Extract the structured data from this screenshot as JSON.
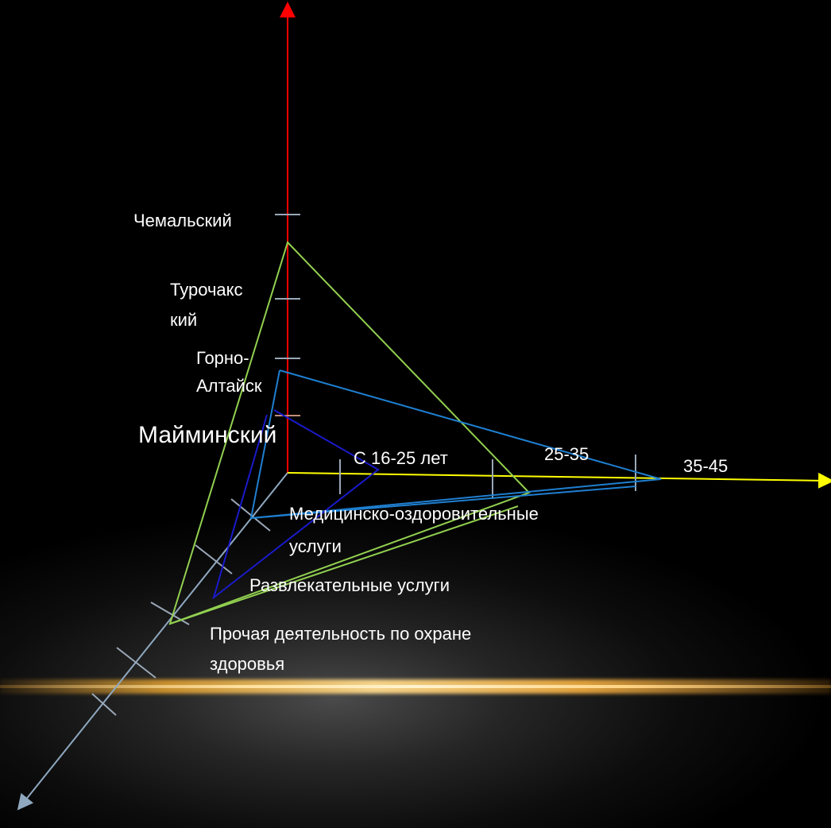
{
  "vertical_axis": {
    "color": "#ff0000",
    "ticks": [
      "Чемальский",
      "Турочакский_split",
      "Горно-Алтайск",
      "Майминский"
    ]
  },
  "labels": {
    "chemalsky": "Чемальский",
    "turochaksky_1": "Турочак",
    "turochaksky_2": "с",
    "turochaksky_3": "кий",
    "gorno_1": "Горно-",
    "gorno_2": "Алтайск",
    "mayminsky": "Майминский",
    "age_16_25": "С 16-25 лет",
    "age_25_35": "25-35",
    "age_35_45": "35-45",
    "medical_1": "Медицинско-оздоровительные",
    "medical_2": "услуги",
    "entertainment": "Развлекательные услуги",
    "other_1": "Прочая деятельность по охране",
    "other_2": "здоровья"
  },
  "colors": {
    "vertical_axis": "#ff0000",
    "horizontal_axis": "#ffff00",
    "diagonal_axis": "#8fa8c0",
    "ticks": "#9aa8b8",
    "green_triangle": "#92d050",
    "blue_triangle": "#1f7fd0",
    "navy_triangle": "#1a1acc"
  }
}
